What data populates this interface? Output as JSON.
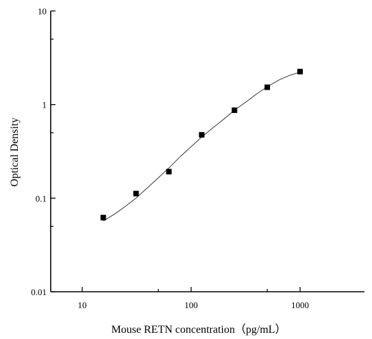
{
  "chart_data": {
    "type": "scatter",
    "title": "",
    "xlabel": "Mouse RETN concentration（pg/mL）",
    "ylabel": "Optical Density",
    "x_scale": "log",
    "y_scale": "log",
    "xlim": [
      5,
      5000
    ],
    "ylim": [
      0.01,
      10
    ],
    "x_ticks": [
      10,
      100,
      1000
    ],
    "x_tick_labels": [
      "10",
      "100",
      "1000"
    ],
    "y_ticks": [
      0.01,
      0.1,
      1,
      10
    ],
    "y_tick_labels": [
      "0.01",
      "0.1",
      "1",
      "10"
    ],
    "grid": false,
    "legend": "none",
    "marker_color": "#000000",
    "line_color": "#333333",
    "series": [
      {
        "type": "scatter",
        "x": [
          15.6,
          31.2,
          62.5,
          125,
          250,
          500,
          1000
        ],
        "y": [
          0.062,
          0.112,
          0.192,
          0.475,
          0.87,
          1.53,
          2.25
        ]
      },
      {
        "type": "line",
        "x": [
          15.6,
          20,
          25,
          31.2,
          40,
          50,
          62.5,
          80,
          100,
          125,
          160,
          200,
          250,
          320,
          400,
          500,
          640,
          800,
          1000
        ],
        "y": [
          0.057,
          0.068,
          0.082,
          0.1,
          0.13,
          0.165,
          0.21,
          0.28,
          0.355,
          0.45,
          0.57,
          0.7,
          0.87,
          1.07,
          1.3,
          1.55,
          1.83,
          2.05,
          2.22
        ]
      }
    ]
  }
}
